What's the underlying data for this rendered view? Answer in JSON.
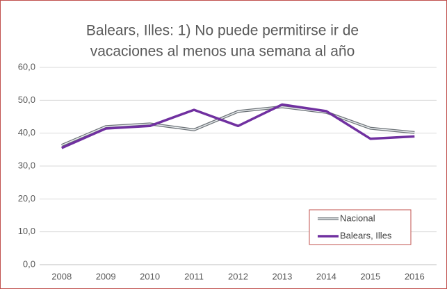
{
  "chart_data": {
    "type": "line",
    "title": [
      "Balears, Illes: 1) No puede permitirse ir de",
      "vacaciones al menos una semana al año"
    ],
    "categories": [
      "2008",
      "2009",
      "2010",
      "2011",
      "2012",
      "2013",
      "2014",
      "2015",
      "2016"
    ],
    "series": [
      {
        "name": "Nacional",
        "color": "#6d7378",
        "values": [
          36.3,
          42.0,
          42.8,
          41.0,
          46.6,
          48.0,
          46.3,
          41.5,
          40.2
        ]
      },
      {
        "name": "Balears, Illes",
        "color": "#7030a0",
        "values": [
          35.5,
          41.4,
          42.2,
          47.1,
          42.2,
          48.7,
          46.7,
          38.3,
          39.0
        ]
      }
    ],
    "ylim": [
      0,
      60
    ],
    "yticks": [
      {
        "value": 0,
        "label": "0,0"
      },
      {
        "value": 10,
        "label": "10,0"
      },
      {
        "value": 20,
        "label": "20,0"
      },
      {
        "value": 30,
        "label": "30,0"
      },
      {
        "value": 40,
        "label": "40,0"
      },
      {
        "value": 50,
        "label": "50,0"
      },
      {
        "value": 60,
        "label": "60,0"
      }
    ],
    "grid": true,
    "legend": "lower right"
  }
}
